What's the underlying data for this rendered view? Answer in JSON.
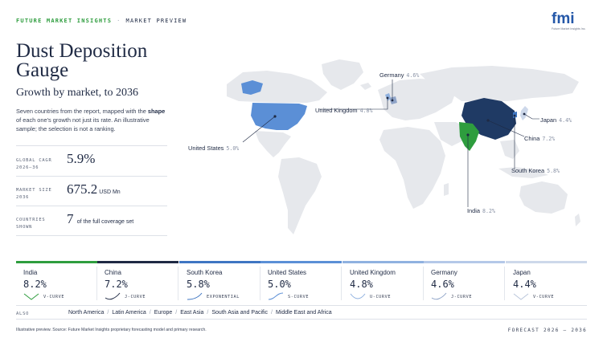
{
  "header": {
    "brand": "FUTURE MARKET INSIGHTS",
    "separator": "·",
    "section": "MARKET PREVIEW",
    "logo_text": "fmi",
    "logo_tagline": "Future Market Insights Inc."
  },
  "title": "Dust Deposition Gauge",
  "subtitle": "Growth by market, to 2036",
  "description": {
    "before": "Seven countries from the report, mapped with the ",
    "bold": "shape",
    "after": " of each one's growth not just its rate. An illustrative sample; the selection is not a ranking."
  },
  "stats": {
    "cagr": {
      "label": "GLOBAL CAGR 2026–36",
      "value": "5.9%"
    },
    "market_size": {
      "label": "MARKET SIZE 2036",
      "value": "675.2",
      "unit": "USD Mn"
    },
    "countries": {
      "label": "COUNTRIES SHOWN",
      "value": "7",
      "suffix": "of the full coverage set"
    }
  },
  "map_labels": {
    "germany": {
      "name": "Germany",
      "pct": "4.6%"
    },
    "united_kingdom": {
      "name": "United Kingdom",
      "pct": "4.8%"
    },
    "united_states": {
      "name": "United States",
      "pct": "5.0%"
    },
    "japan": {
      "name": "Japan",
      "pct": "4.4%"
    },
    "china": {
      "name": "China",
      "pct": "7.2%"
    },
    "south_korea": {
      "name": "South Korea",
      "pct": "5.8%"
    },
    "india": {
      "name": "India",
      "pct": "8.2%"
    }
  },
  "cards": [
    {
      "name": "India",
      "value": "8.2%",
      "curve": "V-CURVE",
      "accent": "#2e9d3e"
    },
    {
      "name": "China",
      "value": "7.2%",
      "curve": "J-CURVE",
      "accent": "#1f2a44"
    },
    {
      "name": "South Korea",
      "value": "5.8%",
      "curve": "EXPONENTIAL",
      "accent": "#3f76c2"
    },
    {
      "name": "United States",
      "value": "5.0%",
      "curve": "S-CURVE",
      "accent": "#5b8fd6"
    },
    {
      "name": "United Kingdom",
      "value": "4.8%",
      "curve": "U-CURVE",
      "accent": "#8fb1e0"
    },
    {
      "name": "Germany",
      "value": "4.6%",
      "curve": "J-CURVE",
      "accent": "#b4c8e8"
    },
    {
      "name": "Japan",
      "value": "4.4%",
      "curve": "V-CURVE",
      "accent": "#cdd8ea"
    }
  ],
  "also": {
    "label": "ALSO",
    "regions": [
      "North America",
      "Latin America",
      "Europe",
      "East Asia",
      "South Asia and Pacific",
      "Middle East and Africa"
    ]
  },
  "footer": {
    "source": "Illustrative preview. Source: Future Market Insights proprietary forecasting model and primary research.",
    "forecast": "FORECAST 2026 – 2036"
  },
  "colors": {
    "india": "#2e9d3e",
    "china": "#1f3a64",
    "usa": "#5b8fd6",
    "highlight_light": "#8fb1e0",
    "land": "#e6e8ec"
  }
}
